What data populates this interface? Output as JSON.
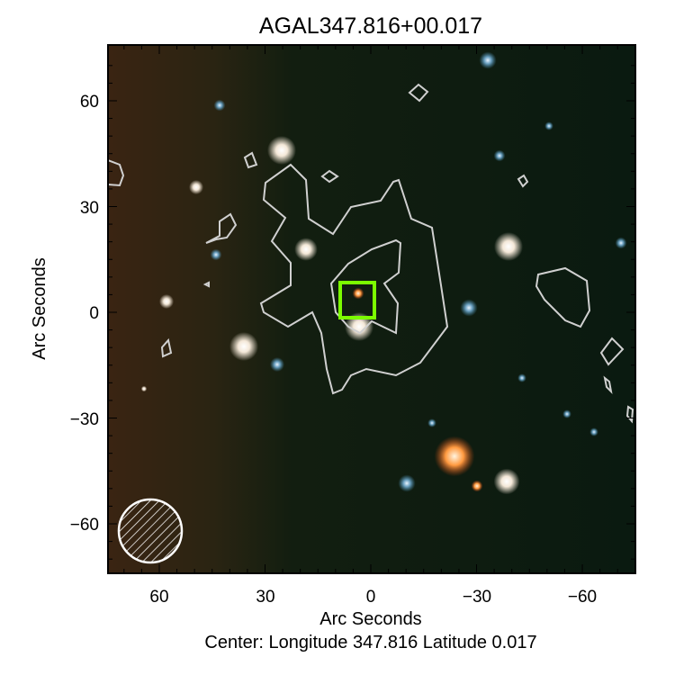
{
  "chart_data": {
    "type": "image",
    "title": "AGAL347.816+00.017",
    "xlabel": "Arc Seconds",
    "ylabel": "Arc Seconds",
    "subtitle": "Center:  Longitude 347.816 Latitude 0.017",
    "xlim": [
      75,
      -75
    ],
    "ylim": [
      -75,
      75
    ],
    "x_ticks": [
      60,
      30,
      0,
      -30,
      -60
    ],
    "x_tick_labels": [
      "60",
      "30",
      "0",
      "−30",
      "−60"
    ],
    "y_ticks": [
      60,
      30,
      0,
      -30,
      -60
    ],
    "y_tick_labels": [
      "60",
      "30",
      "0",
      "−30",
      "−60"
    ],
    "grid": false,
    "colors": {
      "background": "#0b1a0c",
      "contour": "#d0d0d0",
      "marker_box": "#7cfc00",
      "beam": "#ffffff"
    },
    "marker_box_center": [
      1,
      4
    ],
    "beam_center": [
      62,
      -62
    ]
  }
}
